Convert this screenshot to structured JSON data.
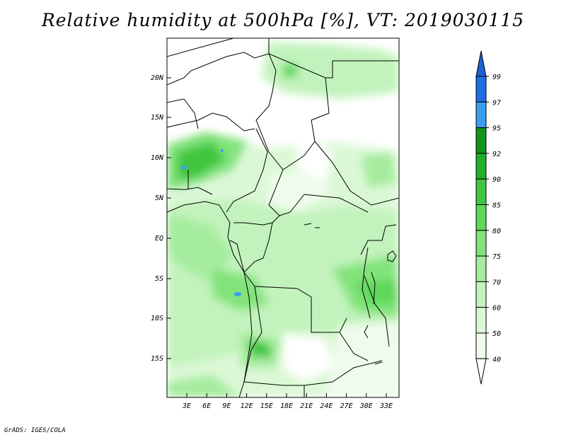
{
  "title": "Relative humidity at 500hPa [%], VT: 2019030115",
  "credit": "GrADS: IGES/COLA",
  "map": {
    "projection": "lat-lon",
    "region": "Central Africa",
    "lon_range": [
      0,
      35
    ],
    "lat_range": [
      -19,
      25
    ],
    "lat_ticks": [
      "20N",
      "15N",
      "10N",
      "5N",
      "EQ",
      "5S",
      "10S",
      "15S"
    ],
    "lon_ticks": [
      "3E",
      "6E",
      "9E",
      "12E",
      "15E",
      "18E",
      "21E",
      "24E",
      "27E",
      "30E",
      "33E"
    ],
    "field": "Relative humidity at 500hPa (%)"
  },
  "colorbar": {
    "levels": [
      "99",
      "97",
      "95",
      "92",
      "90",
      "85",
      "80",
      "75",
      "70",
      "60",
      "50",
      "40"
    ],
    "colors": [
      "#1e5fd6",
      "#1e6ee6",
      "#3a9ef0",
      "#11961b",
      "#20b12a",
      "#3fc63f",
      "#5fd85a",
      "#82e37c",
      "#a5ec9e",
      "#c2f3bc",
      "#dbf8d6",
      "#effcec",
      "#ffffff"
    ]
  }
}
